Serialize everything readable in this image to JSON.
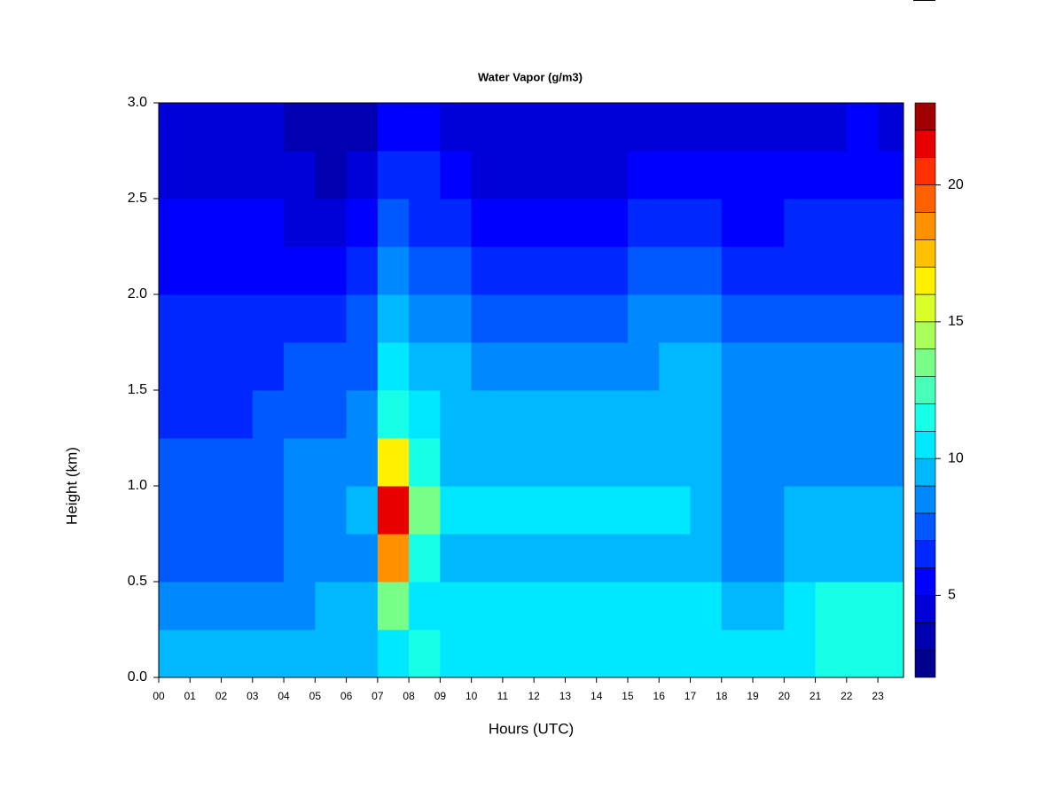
{
  "chart_data": {
    "type": "heatmap",
    "title": "Water Vapor (g/m3)",
    "x_label": "Hours (UTC)",
    "y_label": "Height (km)",
    "x": [
      0.5,
      1.5,
      2.5,
      3.5,
      4.5,
      5.5,
      6.5,
      7.5,
      8.5,
      9.5,
      10.5,
      11.5,
      12.5,
      13.5,
      14.5,
      15.5,
      16.5,
      17.5,
      18.5,
      19.5,
      20.5,
      21.5,
      22.5,
      23.5
    ],
    "y": [
      0.125,
      0.375,
      0.625,
      0.875,
      1.125,
      1.375,
      1.625,
      1.875,
      2.125,
      2.375,
      2.625,
      2.875
    ],
    "z": [
      [
        9,
        9,
        9,
        9,
        9,
        9,
        9,
        10,
        11,
        10,
        10,
        10,
        10,
        10,
        10,
        10,
        10,
        10,
        10,
        10,
        10,
        11,
        11,
        11
      ],
      [
        8,
        8,
        8,
        8,
        8,
        9,
        9,
        13,
        10,
        10,
        10,
        10,
        10,
        10,
        10,
        10,
        10,
        10,
        9,
        9,
        10,
        11,
        11,
        11
      ],
      [
        7,
        7,
        7,
        7,
        8,
        8,
        8,
        18,
        11,
        9,
        9,
        9,
        9,
        9,
        9,
        9,
        9,
        9,
        8,
        8,
        9,
        9,
        9,
        9
      ],
      [
        7,
        7,
        7,
        7,
        8,
        8,
        9,
        21,
        13,
        10,
        10,
        10,
        10,
        10,
        10,
        10,
        10,
        9,
        8,
        8,
        9,
        9,
        9,
        9
      ],
      [
        7,
        7,
        7,
        7,
        8,
        8,
        8,
        16,
        11,
        9,
        9,
        9,
        9,
        9,
        9,
        9,
        9,
        9,
        8,
        8,
        8,
        8,
        8,
        8
      ],
      [
        6,
        6,
        6,
        7,
        7,
        7,
        8,
        11,
        10,
        9,
        9,
        9,
        9,
        9,
        9,
        9,
        9,
        9,
        8,
        8,
        8,
        8,
        8,
        8
      ],
      [
        6,
        6,
        6,
        6,
        7,
        7,
        7,
        10,
        9,
        9,
        8,
        8,
        8,
        8,
        8,
        8,
        9,
        9,
        8,
        8,
        8,
        8,
        8,
        8
      ],
      [
        6,
        6,
        6,
        6,
        6,
        6,
        7,
        9,
        8,
        8,
        7,
        7,
        7,
        7,
        7,
        8,
        8,
        8,
        7,
        7,
        7,
        7,
        7,
        7
      ],
      [
        5,
        5,
        5,
        5,
        5,
        5,
        6,
        8,
        7,
        7,
        6,
        6,
        6,
        6,
        6,
        7,
        7,
        7,
        6,
        6,
        6,
        6,
        6,
        6
      ],
      [
        5,
        5,
        5,
        5,
        4,
        4,
        5,
        7,
        6,
        6,
        5,
        5,
        5,
        5,
        5,
        6,
        6,
        6,
        5,
        5,
        6,
        6,
        6,
        6
      ],
      [
        4,
        4,
        4,
        4,
        4,
        3,
        4,
        6,
        6,
        5,
        4,
        4,
        4,
        4,
        4,
        5,
        5,
        5,
        5,
        5,
        5,
        5,
        5,
        5
      ],
      [
        4,
        4,
        4,
        4,
        3,
        3,
        3,
        5,
        5,
        4,
        4,
        4,
        4,
        4,
        4,
        4,
        4,
        4,
        4,
        4,
        4,
        4,
        5,
        4
      ]
    ],
    "xlim": [
      0,
      23.82
    ],
    "ylim": [
      0,
      3
    ],
    "xticks": [
      {
        "value": 0,
        "label": "00"
      },
      {
        "value": 1,
        "label": "01"
      },
      {
        "value": 2,
        "label": "02"
      },
      {
        "value": 3,
        "label": "03"
      },
      {
        "value": 4,
        "label": "04"
      },
      {
        "value": 5,
        "label": "05"
      },
      {
        "value": 6,
        "label": "06"
      },
      {
        "value": 7,
        "label": "07"
      },
      {
        "value": 8,
        "label": "08"
      },
      {
        "value": 9,
        "label": "09"
      },
      10,
      11,
      12,
      13,
      14,
      15,
      16,
      17,
      18,
      19,
      20,
      21,
      22,
      23
    ],
    "yticks": [
      {
        "value": 0,
        "label": "0.0"
      },
      {
        "value": 0.5,
        "label": "0.5"
      },
      {
        "value": 1,
        "label": "1.0"
      },
      {
        "value": 1.5,
        "label": "1.5"
      },
      {
        "value": 2,
        "label": "2.0"
      },
      {
        "value": 2.5,
        "label": "2.5"
      },
      {
        "value": 3,
        "label": "3.0"
      }
    ],
    "levels": [
      2,
      3,
      4,
      5,
      6,
      7,
      8,
      9,
      10,
      11,
      12,
      13,
      14,
      15,
      16,
      17,
      18,
      19,
      20,
      21,
      22,
      23
    ],
    "colors": [
      "#00008F",
      "#0000B0",
      "#0000D8",
      "#0000FF",
      "#0028FF",
      "#0058FF",
      "#0088FF",
      "#00B8FF",
      "#00E8FF",
      "#18FFE7",
      "#48FFB7",
      "#78FF87",
      "#A8FF57",
      "#D8FF27",
      "#FFF000",
      "#FFC000",
      "#FF9000",
      "#FF6000",
      "#FF3000",
      "#E80000",
      "#A00000"
    ],
    "colorbar_ticks": [
      5,
      10,
      15,
      20
    ]
  }
}
